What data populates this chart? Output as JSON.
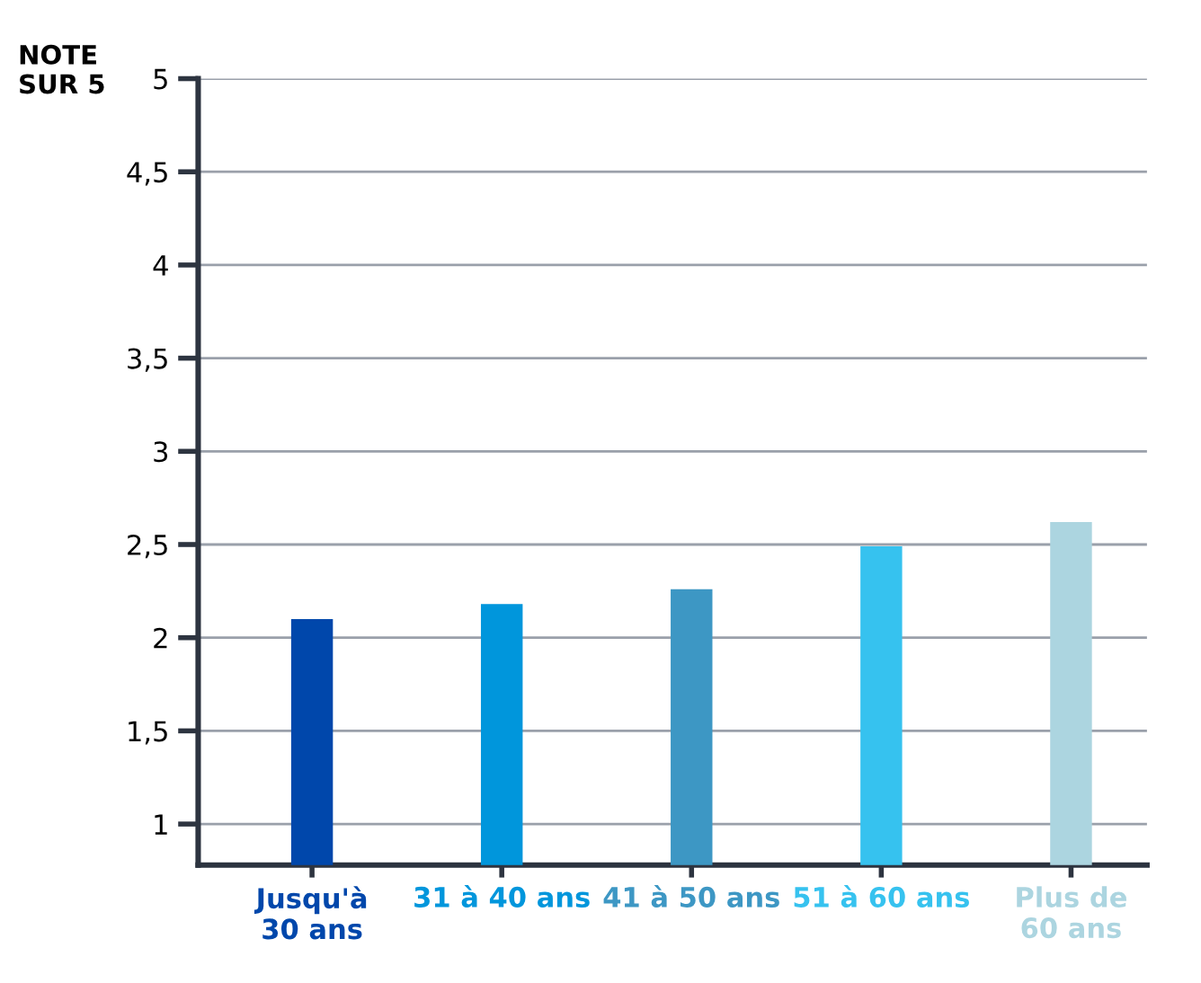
{
  "chart_data": {
    "type": "bar",
    "ylabel": "NOTE\nSUR 5",
    "categories": [
      "Jusqu'à\n30 ans",
      "31 à 40 ans",
      "41 à 50 ans",
      "51 à 60 ans",
      "Plus de\n60 ans"
    ],
    "values": [
      2.1,
      2.18,
      2.26,
      2.49,
      2.62
    ],
    "colors": [
      "#0047ab",
      "#0096dc",
      "#3d97c4",
      "#36c2ef",
      "#acd5e0"
    ],
    "ylim": [
      0.78,
      5
    ],
    "yticks": [
      {
        "value": 1,
        "label": "1"
      },
      {
        "value": 1.5,
        "label": "1,5"
      },
      {
        "value": 2,
        "label": "2"
      },
      {
        "value": 2.5,
        "label": "2,5"
      },
      {
        "value": 3,
        "label": "3"
      },
      {
        "value": 3.5,
        "label": "3,5"
      },
      {
        "value": 4,
        "label": "4"
      },
      {
        "value": 4.5,
        "label": "4,5"
      },
      {
        "value": 5,
        "label": "5"
      }
    ],
    "grid": "y"
  }
}
